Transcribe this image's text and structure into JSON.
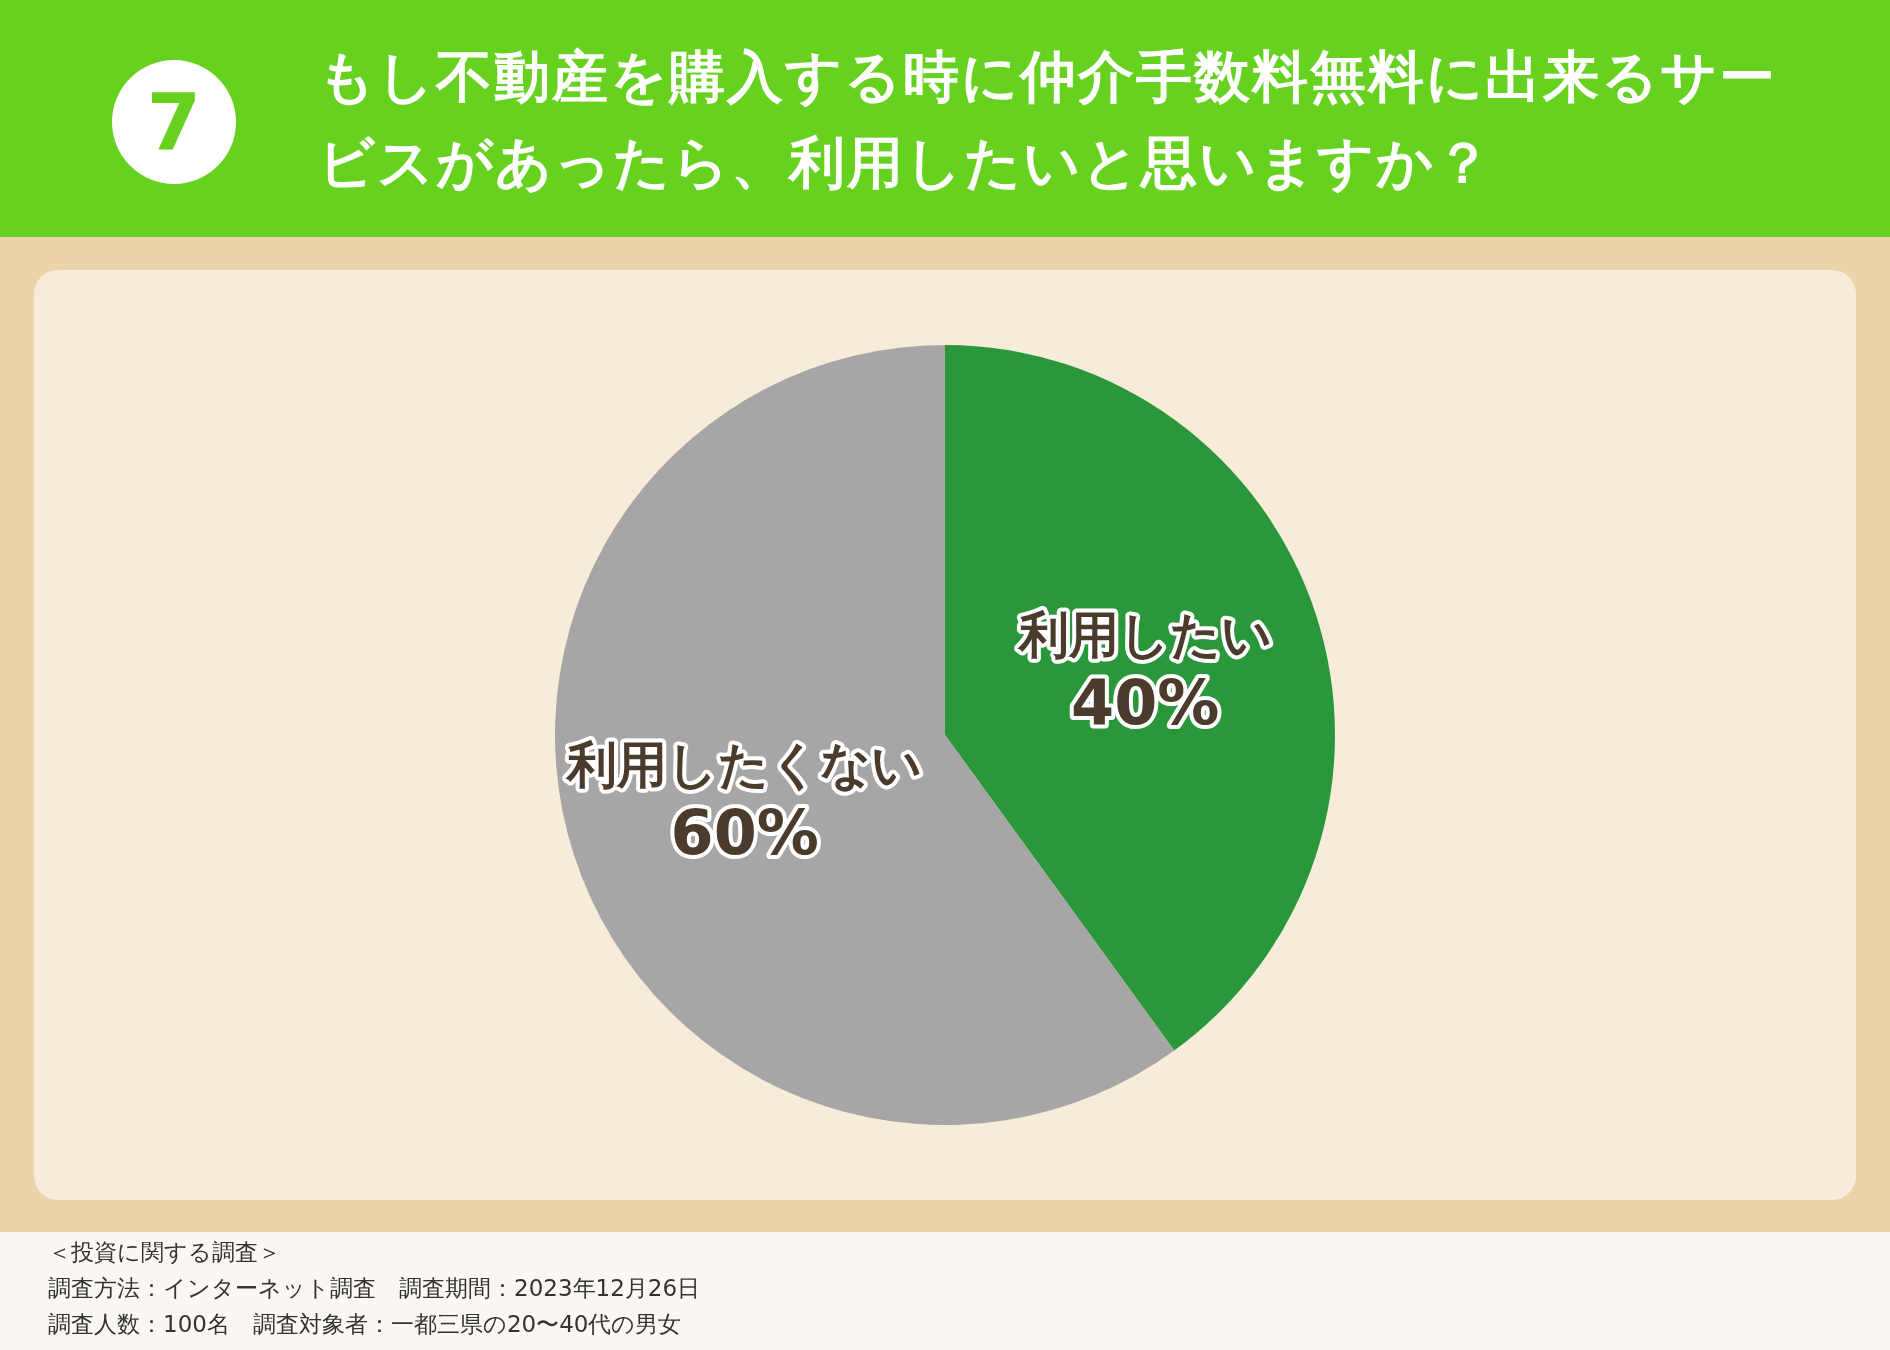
{
  "chart_data": {
    "type": "pie",
    "title": "もし不動産を購入する時に仲介手数料無料に出来るサービスがあったら、利用したいと思いますか？",
    "categories": [
      "利用したい",
      "利用したくない"
    ],
    "values": [
      40,
      60
    ],
    "colors": [
      "#2a973a",
      "#a6a6a6"
    ],
    "value_labels": [
      "40%",
      "60%"
    ],
    "annotations": [
      "7",
      "＜投資に関する調査＞",
      "調査方法：インターネット調査　調査期間：2023年12月26日",
      "調査人数：100名　調査対象者：一都三県の20〜40代の男女"
    ]
  }
}
